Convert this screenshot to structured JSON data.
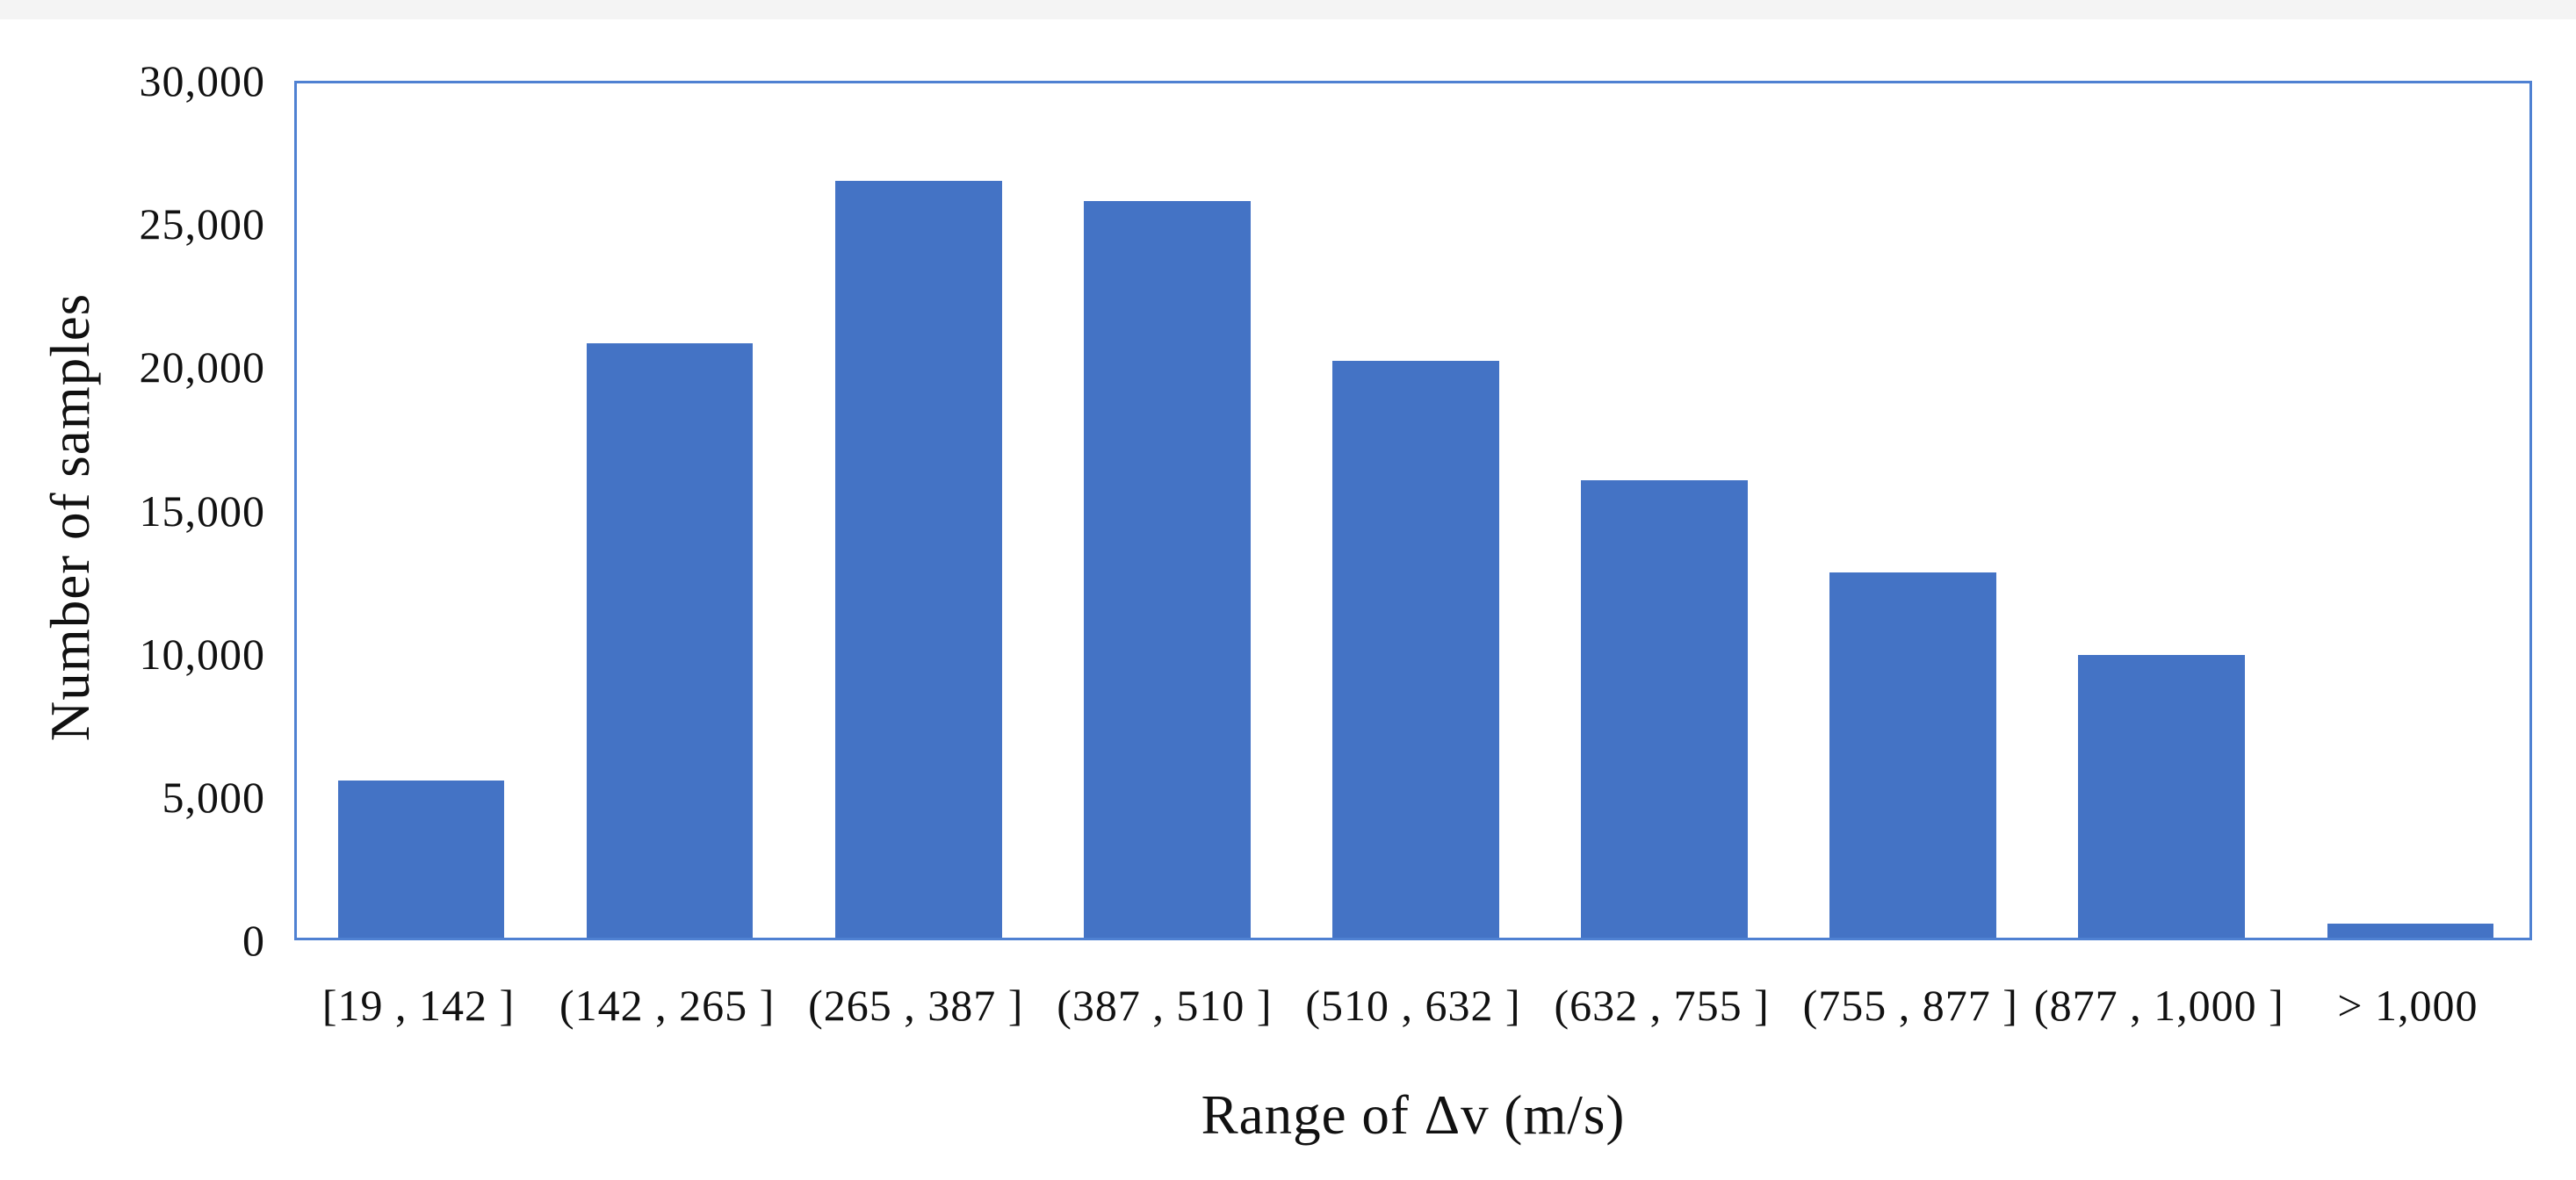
{
  "page": {
    "background_color": "#ffffff",
    "top_strip_color": "#f4f4f4",
    "text_color": "#111111"
  },
  "chart_data": {
    "type": "bar",
    "title": "",
    "categories": [
      "[19 , 142 ]",
      "(142 , 265 ]",
      "(265 , 387 ]",
      "(387 , 510 ]",
      "(510 , 632 ]",
      "(632 , 755 ]",
      "(755 , 877 ]",
      "(877 , 1,000 ]",
      "> 1,000"
    ],
    "values": [
      5500,
      20800,
      26500,
      25800,
      20200,
      16000,
      12800,
      9900,
      500
    ],
    "xlabel": "Range of Δv (m/s)",
    "ylabel": "Number of samples",
    "ylim": [
      0,
      30000
    ],
    "ytick_interval": 5000,
    "yticks": [
      0,
      5000,
      10000,
      15000,
      20000,
      25000,
      30000
    ],
    "ytick_labels": [
      "0",
      "5,000",
      "10,000",
      "15,000",
      "20,000",
      "25,000",
      "30,000"
    ],
    "bar_color": "#4473C5",
    "plot_border_color": "#4f81d2",
    "grid": "off",
    "legend": "none",
    "bar_width_ratio": 0.67
  }
}
